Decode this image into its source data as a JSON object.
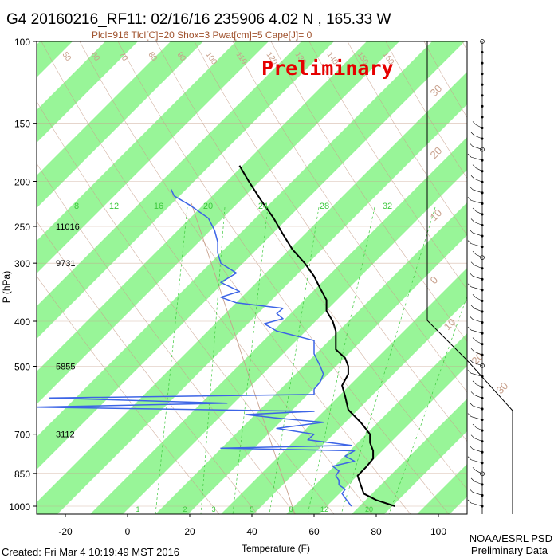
{
  "title": "G4 20160216_RF11: 02/16/16 235906   4.02 N , 165.33 W",
  "subtitle": "Plcl=916 Tlcl[C]=20 Shox=3 Pwat[cm]=5 Cape[J]= 0",
  "watermark": "Preliminary",
  "footer_created": "Created: Fri Mar  4 10:19:49 MST 2016",
  "footer_org": "NOAA/ESRL PSD",
  "footer_data": "Preliminary Data",
  "colors": {
    "stripe": "#98f598",
    "temperature": "#000000",
    "dewpoint": "#3c64e6",
    "dry_adiabat": "#c8a08c",
    "mixing_ratio": "#3cc83c",
    "watermark": "#e60000"
  },
  "chart_data": {
    "type": "line",
    "title": "G4 20160216_RF11: 02/16/16 235906   4.02 N , 165.33 W",
    "xlabel": "Temperature (F)",
    "ylabel": "P (hPa)",
    "xlim": [
      -30,
      110
    ],
    "ylim": [
      1000,
      100
    ],
    "x_ticks": [
      -20,
      0,
      20,
      40,
      60,
      80,
      100
    ],
    "y_ticks": [
      100,
      150,
      200,
      250,
      300,
      400,
      500,
      700,
      850,
      1000
    ],
    "heights": [
      {
        "p": 250,
        "label": "11016"
      },
      {
        "p": 300,
        "label": "9731"
      },
      {
        "p": 500,
        "label": "5855"
      },
      {
        "p": 700,
        "label": "3112"
      }
    ],
    "mixing_ratio_labels": [
      "8",
      "12",
      "16",
      "20",
      "24",
      "28",
      "32"
    ],
    "mixing_ratio_bottom_labels": [
      "1",
      "2",
      "3",
      "5",
      "8",
      "12",
      "20"
    ],
    "adiabat_labels": [
      "50",
      "60",
      "70",
      "80",
      "90",
      "100",
      "110",
      "120",
      "130",
      "140",
      "150",
      "160"
    ],
    "isotherm_labels": [
      "30",
      "20",
      "10",
      "0",
      "10",
      "20",
      "30"
    ],
    "series": [
      {
        "key": "temperature",
        "points": [
          [
            1000,
            86
          ],
          [
            970,
            80
          ],
          [
            940,
            76
          ],
          [
            900,
            75
          ],
          [
            860,
            74
          ],
          [
            820,
            77
          ],
          [
            790,
            79
          ],
          [
            760,
            79
          ],
          [
            730,
            78
          ],
          [
            700,
            78
          ],
          [
            660,
            75
          ],
          [
            620,
            71
          ],
          [
            580,
            70
          ],
          [
            550,
            69
          ],
          [
            520,
            71
          ],
          [
            500,
            71
          ],
          [
            480,
            70
          ],
          [
            460,
            67
          ],
          [
            440,
            67
          ],
          [
            420,
            67
          ],
          [
            400,
            66
          ],
          [
            380,
            64
          ],
          [
            360,
            64
          ],
          [
            340,
            62
          ],
          [
            320,
            60
          ],
          [
            300,
            57
          ],
          [
            280,
            53
          ],
          [
            260,
            50
          ],
          [
            240,
            47
          ],
          [
            220,
            43
          ],
          [
            200,
            39
          ],
          [
            185,
            36
          ]
        ]
      },
      {
        "key": "dewpoint",
        "points": [
          [
            1000,
            72
          ],
          [
            980,
            71
          ],
          [
            960,
            70
          ],
          [
            940,
            69
          ],
          [
            920,
            70
          ],
          [
            900,
            68
          ],
          [
            880,
            68
          ],
          [
            860,
            67
          ],
          [
            840,
            68
          ],
          [
            820,
            66
          ],
          [
            800,
            73
          ],
          [
            780,
            70
          ],
          [
            760,
            73
          ],
          [
            750,
            30
          ],
          [
            740,
            72
          ],
          [
            720,
            58
          ],
          [
            700,
            60
          ],
          [
            680,
            48
          ],
          [
            660,
            63
          ],
          [
            645,
            47
          ],
          [
            635,
            38
          ],
          [
            625,
            60
          ],
          [
            612,
            -30
          ],
          [
            600,
            32
          ],
          [
            585,
            -25
          ],
          [
            575,
            60
          ],
          [
            560,
            60
          ],
          [
            540,
            62
          ],
          [
            520,
            63
          ],
          [
            500,
            62
          ],
          [
            470,
            60
          ],
          [
            440,
            60
          ],
          [
            420,
            48
          ],
          [
            405,
            44
          ],
          [
            395,
            50
          ],
          [
            385,
            48
          ],
          [
            375,
            50
          ],
          [
            365,
            35
          ],
          [
            355,
            30
          ],
          [
            345,
            36
          ],
          [
            330,
            30
          ],
          [
            315,
            35
          ],
          [
            300,
            30
          ],
          [
            285,
            29
          ],
          [
            270,
            29
          ],
          [
            255,
            28
          ],
          [
            240,
            26
          ],
          [
            225,
            20
          ],
          [
            215,
            15
          ],
          [
            208,
            14
          ]
        ]
      }
    ],
    "wind_barb_levels": 44
  }
}
